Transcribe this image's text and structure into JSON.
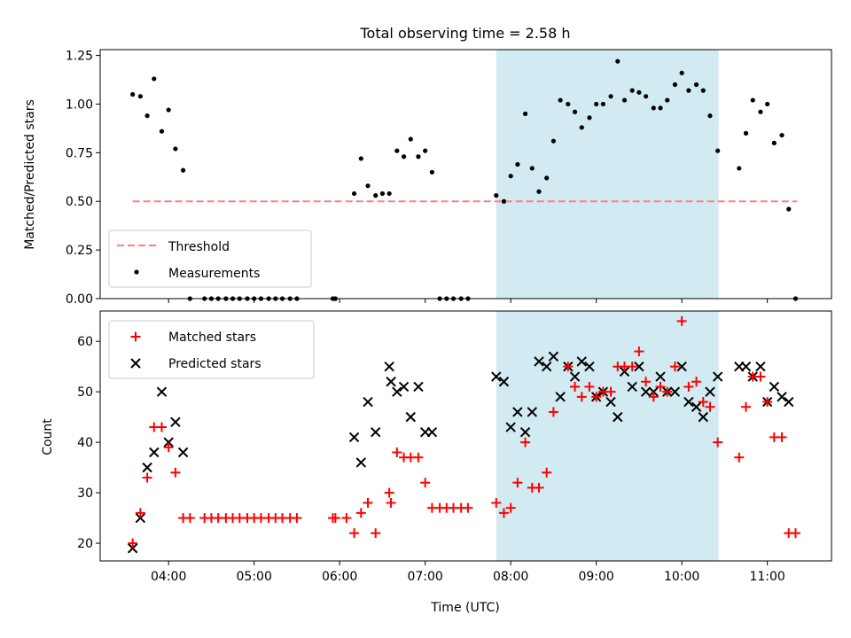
{
  "figure": {
    "title": "Total observing time = 2.58 h",
    "xlabel": "Time (UTC)"
  },
  "colors": {
    "background": "#ffffff",
    "axis": "#000000",
    "threshold": "#ff7f7f",
    "measurements": "#000000",
    "matched": "#ff0000",
    "predicted": "#000000",
    "shade": "#add8e6"
  },
  "chart_data": [
    {
      "type": "scatter",
      "panel": "top",
      "ylabel": "Matched/Predicted stars",
      "x_unit": "hours UTC",
      "xlim": [
        3.2,
        11.75
      ],
      "ylim": [
        0.0,
        1.28
      ],
      "xticks": [
        4,
        5,
        6,
        7,
        8,
        9,
        10,
        11
      ],
      "xtick_labels_shown": false,
      "yticks": [
        0.0,
        0.25,
        0.5,
        0.75,
        1.0,
        1.25
      ],
      "ytick_labels": [
        "0.00",
        "0.25",
        "0.50",
        "0.75",
        "1.00",
        "1.25"
      ],
      "shaded_span": [
        7.83,
        10.43
      ],
      "grid": false,
      "legend": {
        "placement": "lower-left",
        "entries": [
          "Threshold",
          "Measurements"
        ]
      },
      "threshold": {
        "name": "Threshold",
        "x": [
          3.58,
          11.35
        ],
        "y": [
          0.5,
          0.5
        ]
      },
      "series": [
        {
          "name": "Measurements",
          "x": [
            3.58,
            3.67,
            3.75,
            3.83,
            3.92,
            4.0,
            4.08,
            4.17,
            4.25,
            4.42,
            4.5,
            4.58,
            4.67,
            4.75,
            4.83,
            4.92,
            5.0,
            5.08,
            5.17,
            5.25,
            5.33,
            5.42,
            5.5,
            5.92,
            5.95,
            6.17,
            6.25,
            6.33,
            6.42,
            6.5,
            6.58,
            6.67,
            6.75,
            6.83,
            6.92,
            7.0,
            7.08,
            7.17,
            7.25,
            7.33,
            7.42,
            7.5,
            7.83,
            7.92,
            8.0,
            8.08,
            8.17,
            8.25,
            8.33,
            8.42,
            8.5,
            8.58,
            8.67,
            8.75,
            8.83,
            8.92,
            9.0,
            9.08,
            9.17,
            9.25,
            9.33,
            9.42,
            9.5,
            9.58,
            9.67,
            9.75,
            9.83,
            9.92,
            10.0,
            10.08,
            10.17,
            10.25,
            10.33,
            10.42,
            10.67,
            10.75,
            10.83,
            10.92,
            11.0,
            11.08,
            11.17,
            11.25,
            11.33
          ],
          "y": [
            1.05,
            1.04,
            0.94,
            1.13,
            0.86,
            0.97,
            0.77,
            0.66,
            0.0,
            0.0,
            0.0,
            0.0,
            0.0,
            0.0,
            0.0,
            0.0,
            0.0,
            0.0,
            0.0,
            0.0,
            0.0,
            0.0,
            0.0,
            0.0,
            0.0,
            0.54,
            0.72,
            0.58,
            0.53,
            0.54,
            0.54,
            0.76,
            0.73,
            0.82,
            0.73,
            0.76,
            0.65,
            0.0,
            0.0,
            0.0,
            0.0,
            0.0,
            0.53,
            0.5,
            0.63,
            0.69,
            0.95,
            0.67,
            0.55,
            0.62,
            0.81,
            1.02,
            1.0,
            0.96,
            0.88,
            0.93,
            1.0,
            1.0,
            1.04,
            1.22,
            1.02,
            1.07,
            1.06,
            1.04,
            0.98,
            0.98,
            1.02,
            1.1,
            1.16,
            1.07,
            1.1,
            1.07,
            0.94,
            0.76,
            0.67,
            0.85,
            1.02,
            0.96,
            1.0,
            0.8,
            0.84,
            0.46,
            0.0
          ]
        }
      ]
    },
    {
      "type": "scatter",
      "panel": "bottom",
      "ylabel": "Count",
      "xlabel": "Time (UTC)",
      "x_unit": "hours UTC",
      "xlim": [
        3.2,
        11.75
      ],
      "ylim": [
        16.5,
        66
      ],
      "xticks": [
        4,
        5,
        6,
        7,
        8,
        9,
        10,
        11
      ],
      "xtick_labels": [
        "04:00",
        "05:00",
        "06:00",
        "07:00",
        "08:00",
        "09:00",
        "10:00",
        "11:00"
      ],
      "yticks": [
        20,
        30,
        40,
        50,
        60
      ],
      "ytick_labels": [
        "20",
        "30",
        "40",
        "50",
        "60"
      ],
      "shaded_span": [
        7.83,
        10.43
      ],
      "grid": false,
      "legend": {
        "placement": "upper-left",
        "entries": [
          "Matched stars",
          "Predicted stars"
        ]
      },
      "series": [
        {
          "name": "Matched stars",
          "marker": "+",
          "x": [
            3.58,
            3.67,
            3.75,
            3.83,
            3.92,
            4.0,
            4.08,
            4.17,
            4.25,
            4.42,
            4.5,
            4.58,
            4.67,
            4.75,
            4.83,
            4.92,
            5.0,
            5.08,
            5.17,
            5.25,
            5.33,
            5.42,
            5.5,
            5.92,
            5.95,
            6.08,
            6.17,
            6.25,
            6.33,
            6.42,
            6.58,
            6.6,
            6.67,
            6.75,
            6.83,
            6.92,
            7.0,
            7.08,
            7.17,
            7.25,
            7.33,
            7.42,
            7.5,
            7.83,
            7.92,
            8.0,
            8.08,
            8.17,
            8.25,
            8.33,
            8.42,
            8.5,
            8.67,
            8.75,
            8.83,
            8.92,
            9.0,
            9.08,
            9.17,
            9.25,
            9.33,
            9.42,
            9.5,
            9.58,
            9.67,
            9.75,
            9.83,
            9.92,
            10.0,
            10.08,
            10.17,
            10.25,
            10.33,
            10.42,
            10.67,
            10.75,
            10.83,
            10.92,
            11.0,
            11.08,
            11.17,
            11.25,
            11.33
          ],
          "y": [
            20,
            26,
            33,
            43,
            43,
            39,
            34,
            25,
            25,
            25,
            25,
            25,
            25,
            25,
            25,
            25,
            25,
            25,
            25,
            25,
            25,
            25,
            25,
            25,
            25,
            25,
            22,
            26,
            28,
            22,
            30,
            28,
            38,
            37,
            37,
            37,
            32,
            27,
            27,
            27,
            27,
            27,
            27,
            28,
            26,
            27,
            32,
            40,
            31,
            31,
            34,
            46,
            55,
            51,
            49,
            51,
            49,
            50,
            50,
            55,
            55,
            55,
            58,
            52,
            49,
            51,
            50,
            55,
            64,
            51,
            52,
            48,
            47,
            40,
            37,
            47,
            53,
            53,
            48,
            41,
            41,
            22,
            22
          ]
        },
        {
          "name": "Predicted stars",
          "marker": "x",
          "x": [
            3.58,
            3.67,
            3.75,
            3.83,
            3.92,
            4.0,
            4.08,
            4.17,
            6.17,
            6.25,
            6.33,
            6.42,
            6.58,
            6.6,
            6.67,
            6.75,
            6.83,
            6.92,
            7.0,
            7.08,
            7.83,
            7.92,
            8.0,
            8.08,
            8.17,
            8.25,
            8.33,
            8.42,
            8.5,
            8.58,
            8.67,
            8.75,
            8.83,
            8.92,
            9.0,
            9.08,
            9.17,
            9.25,
            9.33,
            9.42,
            9.5,
            9.58,
            9.67,
            9.75,
            9.83,
            9.92,
            10.0,
            10.08,
            10.17,
            10.25,
            10.33,
            10.42,
            10.67,
            10.75,
            10.83,
            10.92,
            11.0,
            11.08,
            11.17,
            11.25
          ],
          "y": [
            19,
            25,
            35,
            38,
            50,
            40,
            44,
            38,
            41,
            36,
            48,
            42,
            55,
            52,
            50,
            51,
            45,
            51,
            42,
            42,
            53,
            52,
            43,
            46,
            42,
            46,
            56,
            55,
            57,
            49,
            55,
            53,
            56,
            55,
            49,
            50,
            48,
            45,
            54,
            51,
            55,
            50,
            50,
            53,
            50,
            50,
            55,
            48,
            47,
            45,
            50,
            53,
            55,
            55,
            53,
            55,
            48,
            51,
            49,
            48
          ]
        }
      ]
    }
  ]
}
